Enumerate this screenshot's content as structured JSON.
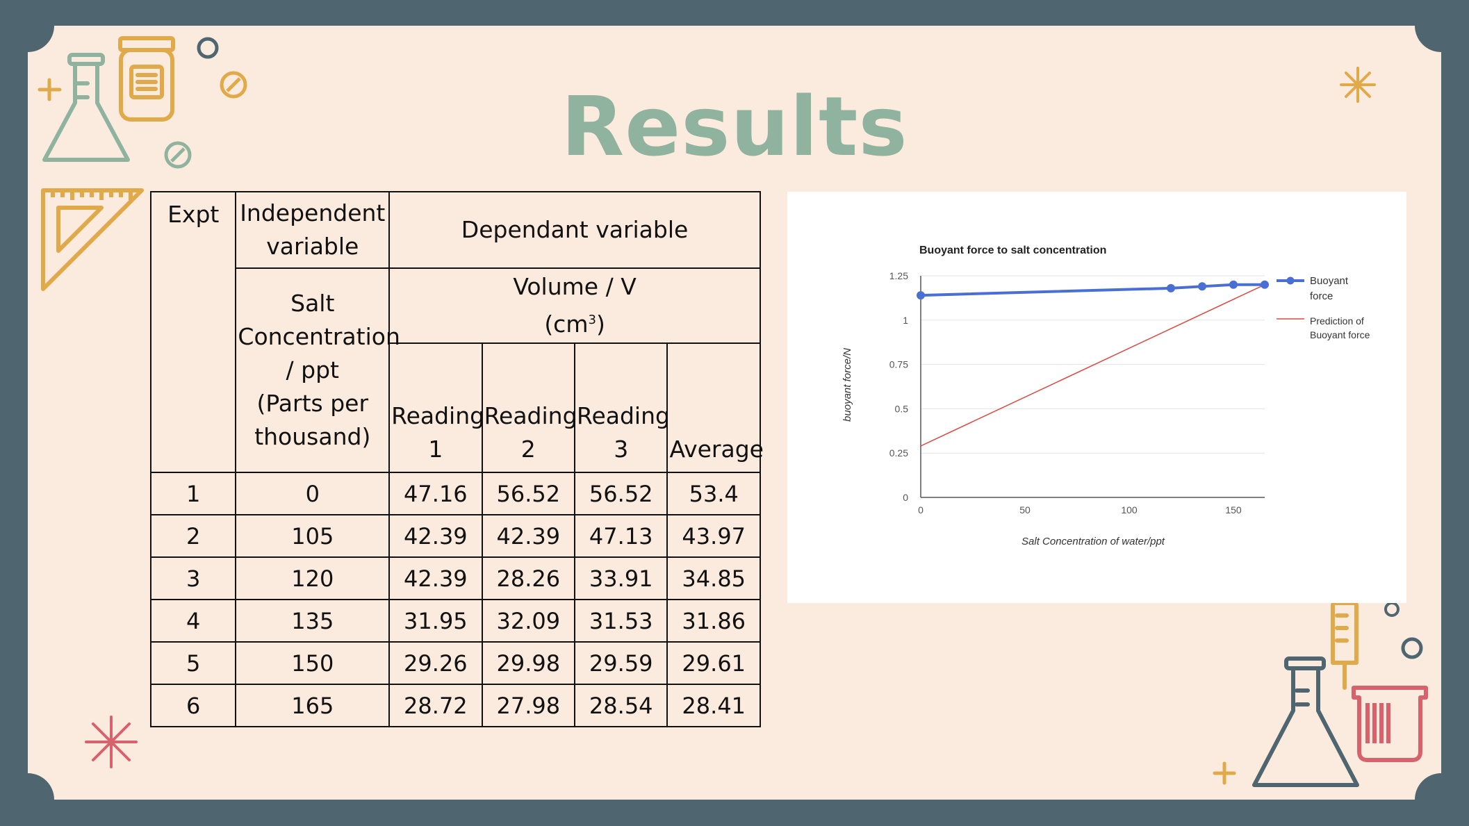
{
  "title": "Results",
  "table": {
    "header": {
      "expt": "Expt",
      "independent": "Independent variable",
      "dependent": "Dependant variable",
      "salt_line1": "Salt Concentration / ppt",
      "salt_line2": "(Parts per thousand)",
      "volume_line1": "Volume / V",
      "volume_line2": "(cm",
      "volume_sup": "3",
      "volume_close": ")",
      "reading1": "Reading 1",
      "reading2": "Reading 2",
      "reading3": "Reading 3",
      "average": "Average"
    },
    "rows": [
      {
        "expt": "1",
        "salt": "0",
        "r1": "47.16",
        "r2": "56.52",
        "r3": "56.52",
        "avg": "53.4"
      },
      {
        "expt": "2",
        "salt": "105",
        "r1": "42.39",
        "r2": "42.39",
        "r3": "47.13",
        "avg": "43.97"
      },
      {
        "expt": "3",
        "salt": "120",
        "r1": "42.39",
        "r2": "28.26",
        "r3": "33.91",
        "avg": "34.85"
      },
      {
        "expt": "4",
        "salt": "135",
        "r1": "31.95",
        "r2": "32.09",
        "r3": "31.53",
        "avg": "31.86"
      },
      {
        "expt": "5",
        "salt": "150",
        "r1": "29.26",
        "r2": "29.98",
        "r3": "29.59",
        "avg": "29.61"
      },
      {
        "expt": "6",
        "salt": "165",
        "r1": "28.72",
        "r2": "27.98",
        "r3": "28.54",
        "avg": "28.41"
      }
    ]
  },
  "chart_data": {
    "type": "line",
    "title": "Buoyant force to salt concentration",
    "xlabel": "Salt Concentration of water/ppt",
    "ylabel": "buoyant force/N",
    "xlim": [
      0,
      165
    ],
    "ylim": [
      0,
      1.25
    ],
    "x_ticks": [
      "0",
      "50",
      "100",
      "150"
    ],
    "y_ticks": [
      "0",
      "0.25",
      "0.5",
      "0.75",
      "1",
      "1.25"
    ],
    "grid": true,
    "legend_position": "right",
    "series": [
      {
        "name": "Buoyant force",
        "color": "#4a6fd4",
        "markers": true,
        "x": [
          0,
          120,
          135,
          150,
          165
        ],
        "y": [
          1.14,
          1.18,
          1.19,
          1.2,
          1.2
        ]
      },
      {
        "name": "Prediction of Buoyant force",
        "color": "#e0473d",
        "markers": false,
        "x": [
          0,
          165
        ],
        "y": [
          0.29,
          1.2
        ]
      }
    ]
  },
  "colors": {
    "frame": "#4f6670",
    "panel": "#fbebde",
    "title": "#8fb39f",
    "deco_green": "#8fb39f",
    "deco_orange": "#e0a94a",
    "deco_red": "#d9616b",
    "deco_slate": "#4f6670"
  },
  "icons": [
    "flask-icon",
    "jar-icon",
    "ruler-triangle-icon",
    "syringe-icon",
    "beaker-icon",
    "sparkle-icon",
    "plus-icon",
    "circle-icon",
    "slashed-circle-icon"
  ]
}
